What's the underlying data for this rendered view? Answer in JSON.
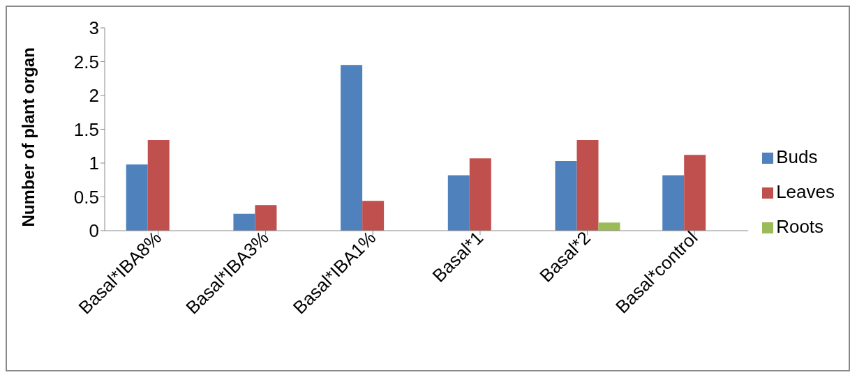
{
  "chart_data": {
    "type": "bar",
    "ylabel": "Number of plant organ",
    "categories": [
      "Basal*IBA8%",
      "Basal*IBA3%",
      "Basal*IBA1%",
      "Basal*1",
      "Basal*2",
      "Basal*control"
    ],
    "series": [
      {
        "name": "Buds",
        "color": "#4f81bd",
        "values": [
          0.98,
          0.25,
          2.45,
          0.82,
          1.03,
          0.82
        ]
      },
      {
        "name": "Leaves",
        "color": "#c0504d",
        "values": [
          1.34,
          0.38,
          0.44,
          1.07,
          1.34,
          1.12
        ]
      },
      {
        "name": "Roots",
        "color": "#9bbb59",
        "values": [
          0,
          0,
          0,
          0,
          0.12,
          0
        ]
      }
    ],
    "ylim": [
      0,
      3
    ],
    "yticks": [
      0,
      0.5,
      1,
      1.5,
      2,
      2.5,
      3
    ],
    "grid": false,
    "legend": "right"
  }
}
